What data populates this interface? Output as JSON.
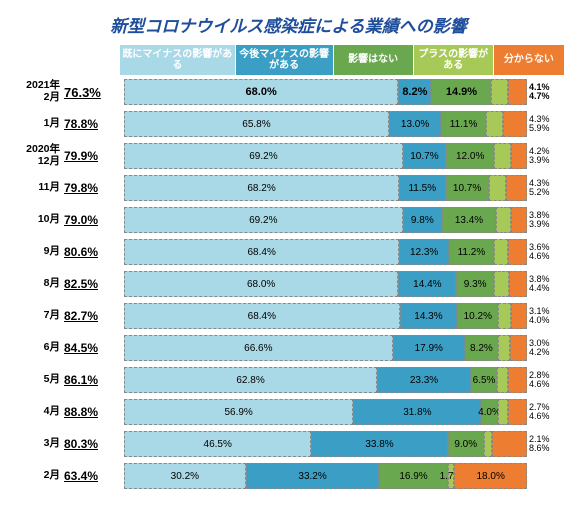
{
  "title": "新型コロナウイルス感染症による業績への影響",
  "legend": [
    {
      "label": "既にマイナスの影響がある",
      "color": "#a9d8e6",
      "width": 26
    },
    {
      "label": "今後マイナスの影響がある",
      "color": "#3b9ec4",
      "width": 22
    },
    {
      "label": "影響はない",
      "color": "#6aa84f",
      "width": 18
    },
    {
      "label": "プラスの影響がある",
      "color": "#a7c957",
      "width": 18
    },
    {
      "label": "分からない",
      "color": "#ed7d31",
      "width": 16
    }
  ],
  "seg_colors": [
    "#a9d8e6",
    "#3b9ec4",
    "#6aa84f",
    "#a7c957",
    "#ed7d31",
    "#bfbfbf"
  ],
  "chart": {
    "rows": [
      {
        "label": "2021年\n2月",
        "total": "76.3%",
        "featured": true,
        "segs": [
          68.0,
          8.2,
          14.9,
          4.1,
          4.7
        ],
        "right": [
          "4.1%",
          "4.7%"
        ],
        "show": [
          "68.0%",
          "8.2%",
          "14.9%",
          "",
          ""
        ]
      },
      {
        "label": "1月",
        "total": "78.8%",
        "segs": [
          65.8,
          13.0,
          11.1,
          4.3,
          5.9
        ],
        "right": [
          "4.3%",
          "5.9%"
        ],
        "show": [
          "65.8%",
          "13.0%",
          "11.1%",
          "",
          ""
        ]
      },
      {
        "label": "2020年\n12月",
        "total": "79.9%",
        "segs": [
          69.2,
          10.7,
          12.0,
          4.2,
          3.9
        ],
        "right": [
          "4.2%",
          "3.9%"
        ],
        "show": [
          "69.2%",
          "10.7%",
          "12.0%",
          "",
          ""
        ]
      },
      {
        "label": "11月",
        "total": "79.8%",
        "segs": [
          68.2,
          11.5,
          10.7,
          4.3,
          5.2
        ],
        "right": [
          "4.3%",
          "5.2%"
        ],
        "show": [
          "68.2%",
          "11.5%",
          "10.7%",
          "",
          ""
        ]
      },
      {
        "label": "10月",
        "total": "79.0%",
        "segs": [
          69.2,
          9.8,
          13.4,
          3.8,
          3.9
        ],
        "right": [
          "3.8%",
          "3.9%"
        ],
        "show": [
          "69.2%",
          "9.8%",
          "13.4%",
          "",
          ""
        ]
      },
      {
        "label": "9月",
        "total": "80.6%",
        "segs": [
          68.4,
          12.3,
          11.2,
          3.6,
          4.6
        ],
        "right": [
          "3.6%",
          "4.6%"
        ],
        "show": [
          "68.4%",
          "12.3%",
          "11.2%",
          "",
          ""
        ]
      },
      {
        "label": "8月",
        "total": "82.5%",
        "segs": [
          68.0,
          14.4,
          9.3,
          3.8,
          4.4
        ],
        "right": [
          "3.8%",
          "4.4%"
        ],
        "show": [
          "68.0%",
          "14.4%",
          "9.3%",
          "",
          ""
        ]
      },
      {
        "label": "7月",
        "total": "82.7%",
        "segs": [
          68.4,
          14.3,
          10.2,
          3.1,
          4.0
        ],
        "right": [
          "3.1%",
          "4.0%"
        ],
        "show": [
          "68.4%",
          "14.3%",
          "10.2%",
          "",
          ""
        ]
      },
      {
        "label": "6月",
        "total": "84.5%",
        "segs": [
          66.6,
          17.9,
          8.2,
          3.0,
          4.2
        ],
        "right": [
          "3.0%",
          "4.2%"
        ],
        "show": [
          "66.6%",
          "17.9%",
          "8.2%",
          "",
          ""
        ]
      },
      {
        "label": "5月",
        "total": "86.1%",
        "segs": [
          62.8,
          23.3,
          6.5,
          2.8,
          4.6
        ],
        "right": [
          "2.8%",
          "4.6%"
        ],
        "show": [
          "62.8%",
          "23.3%",
          "6.5%",
          "",
          ""
        ]
      },
      {
        "label": "4月",
        "total": "88.8%",
        "segs": [
          56.9,
          31.8,
          4.0,
          2.7,
          4.6
        ],
        "right": [
          "2.7%",
          "4.6%"
        ],
        "show": [
          "56.9%",
          "31.8%",
          "4.0%",
          "",
          ""
        ]
      },
      {
        "label": "3月",
        "total": "80.3%",
        "segs": [
          46.5,
          33.8,
          9.0,
          2.1,
          8.6
        ],
        "right": [
          "2.1%",
          "8.6%"
        ],
        "show": [
          "46.5%",
          "33.8%",
          "9.0%",
          "",
          ""
        ]
      },
      {
        "label": "2月",
        "total": "63.4%",
        "segs": [
          30.2,
          33.2,
          16.9,
          1.7,
          18.0
        ],
        "right": [],
        "show": [
          "30.2%",
          "33.2%",
          "16.9%",
          "1.7%",
          "18.0%"
        ]
      }
    ]
  }
}
